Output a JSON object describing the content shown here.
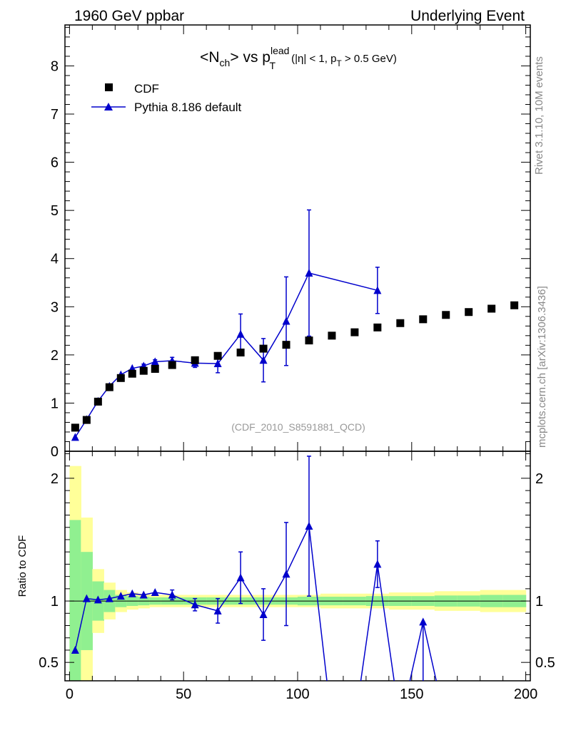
{
  "header": {
    "left": "1960 GeV ppbar",
    "right": "Underlying Event"
  },
  "side_labels": {
    "rivet": "Rivet 3.1.10,  10M events",
    "mcplots": "mcplots.cern.ch [arXiv:1306.3436]"
  },
  "title": {
    "n": "<N",
    "n_sub": "ch",
    "mid": "> vs p",
    "p_sup": "lead",
    "p_sub": "T",
    "tail": " (|η| < 1, p",
    "tail_sub": "T",
    "tail_end": " > 0.5 GeV)"
  },
  "watermark": "(CDF_2010_S8591881_QCD)",
  "ratio_ylabel": "Ratio to CDF",
  "legend": [
    {
      "label": "CDF",
      "marker": "square",
      "color": "#000000"
    },
    {
      "label": "Pythia 8.186 default",
      "marker": "triangle",
      "color": "#0000cc"
    }
  ],
  "colors": {
    "data": "#000000",
    "mc": "#0000cc",
    "band_inner": "#90f090",
    "band_outer": "#ffff99",
    "watermark": "#999999",
    "side_text": "#888888"
  },
  "chart_data": [
    {
      "type": "scatter",
      "panel": "main",
      "xlim": [
        -2,
        202
      ],
      "ylim": [
        0,
        8.85
      ],
      "yticks": [
        0,
        1,
        2,
        3,
        4,
        5,
        6,
        7,
        8
      ],
      "ytick_labels": [
        "0",
        "1",
        "2",
        "3",
        "4",
        "5",
        "6",
        "7",
        "8"
      ],
      "series": [
        {
          "name": "CDF",
          "x": [
            2.5,
            7.5,
            12.5,
            17.5,
            22.5,
            27.5,
            32.5,
            37.5,
            45,
            55,
            65,
            75,
            85,
            95,
            105,
            115,
            125,
            135,
            145,
            155,
            165,
            175,
            185,
            195
          ],
          "y": [
            0.49,
            0.65,
            1.03,
            1.33,
            1.52,
            1.61,
            1.67,
            1.71,
            1.79,
            1.89,
            1.98,
            2.05,
            2.13,
            2.21,
            2.3,
            2.4,
            2.47,
            2.57,
            2.66,
            2.74,
            2.83,
            2.89,
            2.96,
            3.03
          ]
        },
        {
          "name": "Pythia 8.186 default",
          "x": [
            2.5,
            7.5,
            12.5,
            17.5,
            22.5,
            27.5,
            32.5,
            37.5,
            45,
            55,
            65,
            75,
            85,
            95,
            105,
            135
          ],
          "y": [
            0.29,
            0.66,
            1.04,
            1.35,
            1.59,
            1.72,
            1.77,
            1.86,
            1.88,
            1.83,
            1.82,
            2.43,
            1.89,
            2.7,
            3.7,
            3.34
          ],
          "yerr": [
            0.02,
            0.02,
            0.02,
            0.02,
            0.03,
            0.03,
            0.04,
            0.04,
            0.07,
            0.09,
            0.19,
            0.42,
            0.45,
            0.92,
            1.31,
            0.48
          ]
        }
      ]
    },
    {
      "type": "scatter",
      "panel": "ratio",
      "xlabel": "",
      "ylabel": "Ratio to CDF",
      "xlim": [
        -2,
        202
      ],
      "ylim": [
        0.35,
        2.22
      ],
      "xticks": [
        0,
        50,
        100,
        150,
        200
      ],
      "xtick_labels": [
        "0",
        "50",
        "100",
        "150",
        "200"
      ],
      "yticks": [
        0.5,
        1,
        2
      ],
      "ytick_labels": [
        "0.5",
        "1",
        "2"
      ],
      "reference_line": 1,
      "bands": {
        "x_edges": [
          0,
          5,
          10,
          15,
          20,
          25,
          30,
          35,
          40,
          50,
          60,
          70,
          80,
          90,
          100,
          110,
          120,
          130,
          140,
          150,
          160,
          170,
          180,
          190,
          200
        ],
        "outer_half_width": [
          1.1,
          0.68,
          0.26,
          0.15,
          0.09,
          0.07,
          0.06,
          0.05,
          0.05,
          0.05,
          0.05,
          0.05,
          0.05,
          0.05,
          0.05,
          0.06,
          0.06,
          0.06,
          0.07,
          0.07,
          0.08,
          0.08,
          0.09,
          0.09
        ],
        "inner_half_width": [
          0.66,
          0.4,
          0.16,
          0.09,
          0.05,
          0.04,
          0.035,
          0.03,
          0.03,
          0.03,
          0.03,
          0.03,
          0.03,
          0.03,
          0.035,
          0.035,
          0.035,
          0.04,
          0.04,
          0.04,
          0.045,
          0.045,
          0.05,
          0.05
        ]
      },
      "series": [
        {
          "name": "Pythia 8.186 default",
          "x": [
            2.5,
            7.5,
            12.5,
            17.5,
            22.5,
            27.5,
            32.5,
            37.5,
            45,
            55,
            65,
            75,
            85,
            95,
            105,
            135,
            155
          ],
          "y": [
            0.6,
            1.02,
            1.01,
            1.02,
            1.04,
            1.06,
            1.05,
            1.07,
            1.05,
            0.97,
            0.92,
            1.19,
            0.89,
            1.22,
            1.61,
            1.3,
            0.83
          ],
          "yerr": [
            0.02,
            0.02,
            0.02,
            0.02,
            0.02,
            0.02,
            0.02,
            0.02,
            0.04,
            0.05,
            0.1,
            0.21,
            0.21,
            0.42,
            0.57,
            0.19,
            0.0
          ],
          "segments_out_of_range": [
            [
              105,
              1.61,
              115,
              0.0
            ],
            [
              125,
              0.0,
              135,
              1.3
            ],
            [
              135,
              1.3,
              145,
              0.0
            ],
            [
              145,
              0.0,
              155,
              0.83
            ],
            [
              155,
              0.83,
              165,
              0.0
            ]
          ]
        }
      ]
    }
  ]
}
